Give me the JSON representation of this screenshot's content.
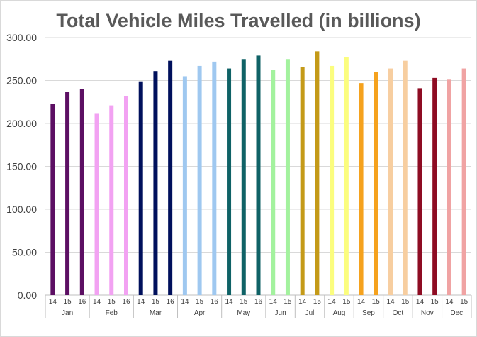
{
  "chart_data": {
    "type": "bar",
    "title": "Total Vehicle Miles Travelled (in billions)",
    "xlabel": "",
    "ylabel": "",
    "ylim": [
      0,
      300
    ],
    "y_ticks": [
      "0.00",
      "50.00",
      "100.00",
      "150.00",
      "200.00",
      "250.00",
      "300.00"
    ],
    "grid": true,
    "legend": "none",
    "groups": [
      {
        "month": "Jan",
        "color": "#5c0f63",
        "bars": [
          {
            "year": "14",
            "value": 223
          },
          {
            "year": "15",
            "value": 237
          },
          {
            "year": "16",
            "value": 240
          }
        ]
      },
      {
        "month": "Feb",
        "color": "#f2a2f2",
        "bars": [
          {
            "year": "14",
            "value": 212
          },
          {
            "year": "15",
            "value": 221
          },
          {
            "year": "16",
            "value": 232
          }
        ]
      },
      {
        "month": "Mar",
        "color": "#00105c",
        "bars": [
          {
            "year": "14",
            "value": 249
          },
          {
            "year": "15",
            "value": 261
          },
          {
            "year": "16",
            "value": 273
          }
        ]
      },
      {
        "month": "Apr",
        "color": "#9fc8f0",
        "bars": [
          {
            "year": "14",
            "value": 255
          },
          {
            "year": "15",
            "value": 267
          },
          {
            "year": "16",
            "value": 272
          }
        ]
      },
      {
        "month": "May",
        "color": "#0f6266",
        "bars": [
          {
            "year": "14",
            "value": 264
          },
          {
            "year": "15",
            "value": 275
          },
          {
            "year": "16",
            "value": 279
          }
        ]
      },
      {
        "month": "Jun",
        "color": "#a3f29e",
        "bars": [
          {
            "year": "14",
            "value": 262
          },
          {
            "year": "15",
            "value": 275
          }
        ]
      },
      {
        "month": "Jul",
        "color": "#c49a18",
        "bars": [
          {
            "year": "14",
            "value": 266
          },
          {
            "year": "15",
            "value": 284
          }
        ]
      },
      {
        "month": "Aug",
        "color": "#fbfd7e",
        "bars": [
          {
            "year": "14",
            "value": 267
          },
          {
            "year": "15",
            "value": 277
          }
        ]
      },
      {
        "month": "Sep",
        "color": "#f5a21e",
        "bars": [
          {
            "year": "14",
            "value": 247
          },
          {
            "year": "15",
            "value": 260
          }
        ]
      },
      {
        "month": "Oct",
        "color": "#f7cea0",
        "bars": [
          {
            "year": "14",
            "value": 264
          },
          {
            "year": "15",
            "value": 273
          }
        ]
      },
      {
        "month": "Nov",
        "color": "#8e0c23",
        "bars": [
          {
            "year": "14",
            "value": 241
          },
          {
            "year": "15",
            "value": 253
          }
        ]
      },
      {
        "month": "Dec",
        "color": "#f0a3a3",
        "bars": [
          {
            "year": "14",
            "value": 251
          },
          {
            "year": "15",
            "value": 264
          }
        ]
      }
    ]
  }
}
